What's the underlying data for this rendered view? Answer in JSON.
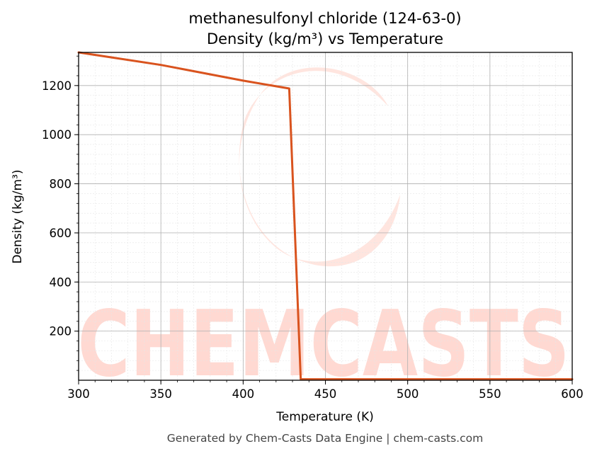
{
  "chart_data": {
    "type": "line",
    "title": "methanesulfonyl chloride (124-63-0)",
    "subtitle": "Density (kg/m³) vs Temperature",
    "xlabel": "Temperature (K)",
    "ylabel": "Density (kg/m³)",
    "xlim": [
      300,
      600
    ],
    "ylim": [
      0,
      1335
    ],
    "x_ticks": [
      300,
      350,
      400,
      450,
      500,
      550,
      600
    ],
    "y_ticks": [
      200,
      400,
      600,
      800,
      1000,
      1200
    ],
    "grid": true,
    "series": [
      {
        "color": "#d9531e",
        "x": [
          300,
          350,
          400,
          428,
          435,
          450,
          500,
          550,
          600
        ],
        "y": [
          1335,
          1284,
          1220,
          1188,
          4,
          4,
          4,
          4,
          4
        ]
      }
    ],
    "watermark": "CHEMCASTS",
    "footer": "Generated by Chem-Casts Data Engine | chem-casts.com"
  }
}
